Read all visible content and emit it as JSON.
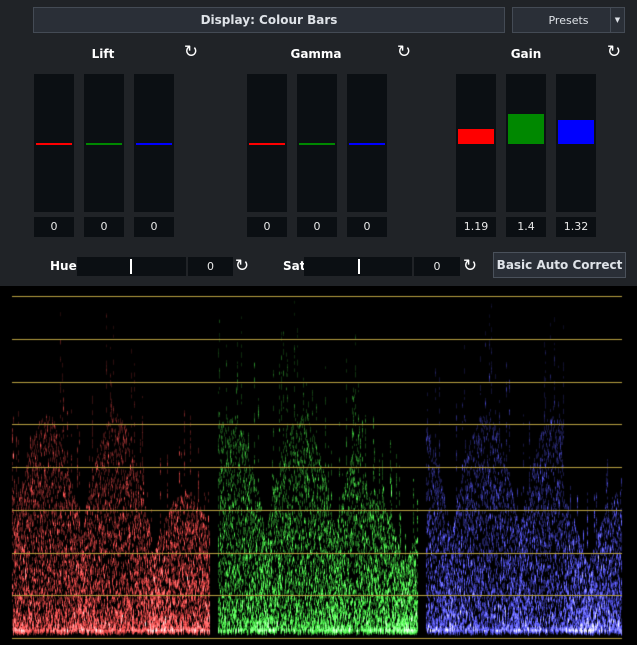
{
  "header": {
    "display_label": "Display: Colour Bars",
    "presets_label": "Presets",
    "dropdown_icon": "caret-down"
  },
  "groups": [
    {
      "label": "Lift",
      "values": [
        "0",
        "0",
        "0"
      ],
      "levels": [
        0,
        0,
        0
      ]
    },
    {
      "label": "Gamma",
      "values": [
        "0",
        "0",
        "0"
      ],
      "levels": [
        0,
        0,
        0
      ]
    },
    {
      "label": "Gain",
      "values": [
        "1.19",
        "1.4",
        "1.32"
      ],
      "levels": [
        1.19,
        1.4,
        1.32
      ]
    }
  ],
  "reset_icon": "rotate-ccw",
  "hue": {
    "label": "Hue",
    "value": "0"
  },
  "sat": {
    "label": "Sat",
    "value": "0"
  },
  "auto_button": "Basic Auto Correct",
  "colors": {
    "red": "#ff0000",
    "green": "#008000",
    "blue": "#0000ff",
    "graticule": "#b8a040"
  },
  "waveform": {
    "type": "RGB parade",
    "channels": [
      "red",
      "green",
      "blue"
    ]
  }
}
